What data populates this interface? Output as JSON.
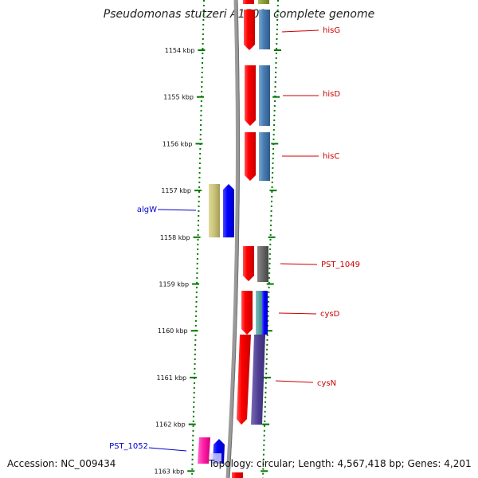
{
  "title": "Pseudomonas stutzeri A1501, complete genome",
  "accession": "Accession: NC_009434",
  "topology": "Topology: circular; Length: 4,567,418 bp; Genes: 4,201",
  "ticks": [
    {
      "label": "1154 kbp",
      "kbp": 1154
    },
    {
      "label": "1155 kbp",
      "kbp": 1155
    },
    {
      "label": "1156 kbp",
      "kbp": 1156
    },
    {
      "label": "1157 kbp",
      "kbp": 1157
    },
    {
      "label": "1158 kbp",
      "kbp": 1158
    },
    {
      "label": "1159 kbp",
      "kbp": 1159
    },
    {
      "label": "1160 kbp",
      "kbp": 1160
    },
    {
      "label": "1161 kbp",
      "kbp": 1161
    },
    {
      "label": "1162 kbp",
      "kbp": 1162
    },
    {
      "label": "1163 kbp",
      "kbp": 1163
    }
  ],
  "gene_labels": [
    {
      "name": "hisG",
      "color": "#cc0000"
    },
    {
      "name": "hisD",
      "color": "#cc0000"
    },
    {
      "name": "hisC",
      "color": "#cc0000"
    },
    {
      "name": "algW",
      "color": "#0000cc"
    },
    {
      "name": "PST_1049",
      "color": "#cc0000"
    },
    {
      "name": "cysD",
      "color": "#cc0000"
    },
    {
      "name": "cysN",
      "color": "#cc0000"
    },
    {
      "name": "PST_1052",
      "color": "#0000cc"
    }
  ]
}
